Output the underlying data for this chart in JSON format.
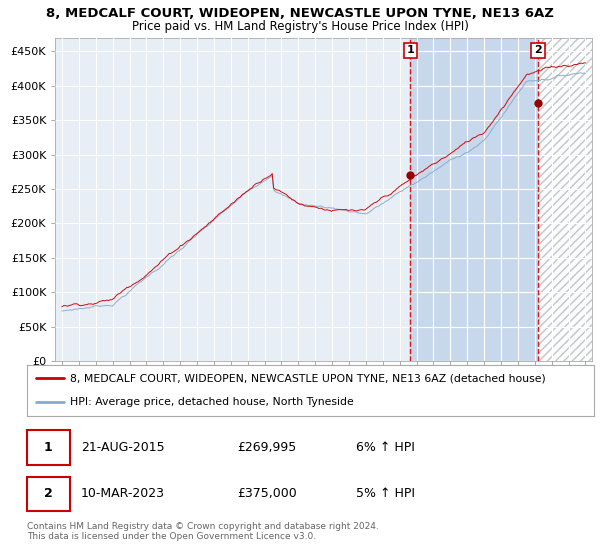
{
  "title_line1": "8, MEDCALF COURT, WIDEOPEN, NEWCASTLE UPON TYNE, NE13 6AZ",
  "title_line2": "Price paid vs. HM Land Registry's House Price Index (HPI)",
  "ylim": [
    0,
    470000
  ],
  "yticks": [
    0,
    50000,
    100000,
    150000,
    200000,
    250000,
    300000,
    350000,
    400000,
    450000
  ],
  "ytick_labels": [
    "£0",
    "£50K",
    "£100K",
    "£150K",
    "£200K",
    "£250K",
    "£300K",
    "£350K",
    "£400K",
    "£450K"
  ],
  "x_start_year": 1995,
  "x_end_year": 2026,
  "sale1_date": 2015.64,
  "sale1_price": 269995,
  "sale2_date": 2023.19,
  "sale2_price": 375000,
  "line1_color": "#cc0000",
  "line2_color": "#88aacc",
  "background_plot": "#e8eef5",
  "background_fig": "#ffffff",
  "grid_color": "#ffffff",
  "legend1": "8, MEDCALF COURT, WIDEOPEN, NEWCASTLE UPON TYNE, NE13 6AZ (detached house)",
  "legend2": "HPI: Average price, detached house, North Tyneside",
  "sale1_label_str": "1",
  "sale1_date_str": "21-AUG-2015",
  "sale1_price_str": "£269,995",
  "sale1_hpi_str": "6% ↑ HPI",
  "sale2_label_str": "2",
  "sale2_date_str": "10-MAR-2023",
  "sale2_price_str": "£375,000",
  "sale2_hpi_str": "5% ↑ HPI",
  "footnote": "Contains HM Land Registry data © Crown copyright and database right 2024.\nThis data is licensed under the Open Government Licence v3.0.",
  "shaded_region_color": "#c8d8ec"
}
